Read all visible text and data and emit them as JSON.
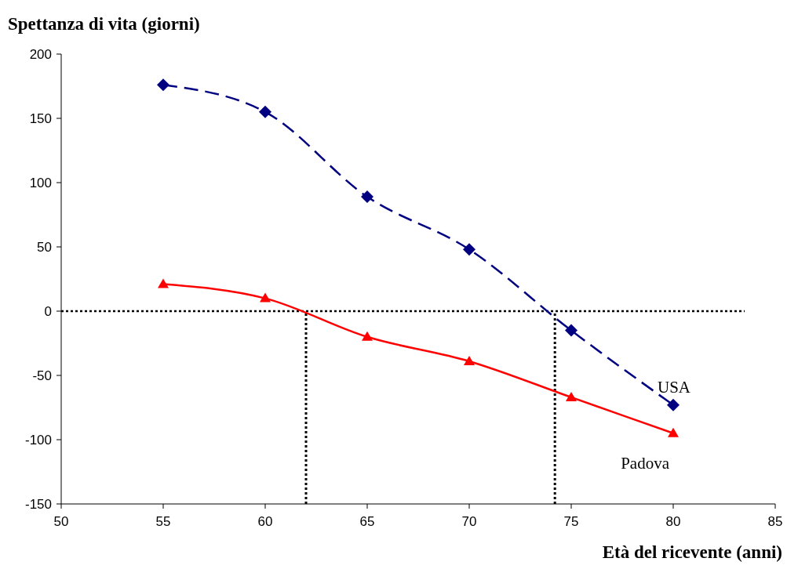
{
  "chart_data": {
    "type": "line",
    "xlabel": "Età del ricevente (anni)",
    "ylabel": "Spettanza di vita (giorni)",
    "x": [
      55,
      60,
      65,
      70,
      75,
      80
    ],
    "series": [
      {
        "name": "USA",
        "color": "#000080",
        "values": [
          176,
          155,
          89,
          48,
          -15,
          -73
        ],
        "marker": "diamond",
        "line_style": "dashed"
      },
      {
        "name": "Padova",
        "color": "#ff0000",
        "values": [
          21,
          10,
          -20,
          -39,
          -67,
          -95
        ],
        "marker": "triangle",
        "line_style": "solid"
      }
    ],
    "xlim": [
      50,
      85
    ],
    "xticks": [
      50,
      55,
      60,
      65,
      70,
      75,
      80,
      85
    ],
    "ylim": [
      -150,
      200
    ],
    "yticks": [
      -150,
      -100,
      -50,
      0,
      50,
      100,
      150,
      200
    ],
    "ref_lines": [
      {
        "axis": "y",
        "value": 0,
        "line_style": "dotted",
        "color": "#000000"
      },
      {
        "axis": "x",
        "value": 62,
        "line_style": "dotted",
        "color": "#000000"
      },
      {
        "axis": "x",
        "value": 74.2,
        "line_style": "dotted",
        "color": "#000000"
      }
    ],
    "grid": false
  }
}
